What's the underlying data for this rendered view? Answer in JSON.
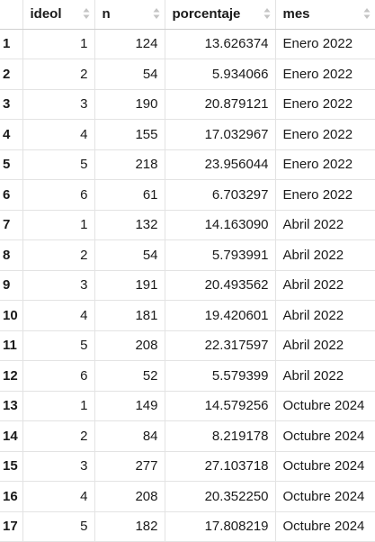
{
  "table": {
    "columns": [
      {
        "label": "ideol"
      },
      {
        "label": "n"
      },
      {
        "label": "porcentaje"
      },
      {
        "label": "mes"
      }
    ],
    "rows": [
      {
        "rownum": "1",
        "ideol": "1",
        "n": "124",
        "porcentaje": "13.626374",
        "mes": "Enero 2022"
      },
      {
        "rownum": "2",
        "ideol": "2",
        "n": "54",
        "porcentaje": "5.934066",
        "mes": "Enero 2022"
      },
      {
        "rownum": "3",
        "ideol": "3",
        "n": "190",
        "porcentaje": "20.879121",
        "mes": "Enero 2022"
      },
      {
        "rownum": "4",
        "ideol": "4",
        "n": "155",
        "porcentaje": "17.032967",
        "mes": "Enero 2022"
      },
      {
        "rownum": "5",
        "ideol": "5",
        "n": "218",
        "porcentaje": "23.956044",
        "mes": "Enero 2022"
      },
      {
        "rownum": "6",
        "ideol": "6",
        "n": "61",
        "porcentaje": "6.703297",
        "mes": "Enero 2022"
      },
      {
        "rownum": "7",
        "ideol": "1",
        "n": "132",
        "porcentaje": "14.163090",
        "mes": "Abril 2022"
      },
      {
        "rownum": "8",
        "ideol": "2",
        "n": "54",
        "porcentaje": "5.793991",
        "mes": "Abril 2022"
      },
      {
        "rownum": "9",
        "ideol": "3",
        "n": "191",
        "porcentaje": "20.493562",
        "mes": "Abril 2022"
      },
      {
        "rownum": "10",
        "ideol": "4",
        "n": "181",
        "porcentaje": "19.420601",
        "mes": "Abril 2022"
      },
      {
        "rownum": "11",
        "ideol": "5",
        "n": "208",
        "porcentaje": "22.317597",
        "mes": "Abril 2022"
      },
      {
        "rownum": "12",
        "ideol": "6",
        "n": "52",
        "porcentaje": "5.579399",
        "mes": "Abril 2022"
      },
      {
        "rownum": "13",
        "ideol": "1",
        "n": "149",
        "porcentaje": "14.579256",
        "mes": "Octubre 2024"
      },
      {
        "rownum": "14",
        "ideol": "2",
        "n": "84",
        "porcentaje": "8.219178",
        "mes": "Octubre 2024"
      },
      {
        "rownum": "15",
        "ideol": "3",
        "n": "277",
        "porcentaje": "27.103718",
        "mes": "Octubre 2024"
      },
      {
        "rownum": "16",
        "ideol": "4",
        "n": "208",
        "porcentaje": "20.352250",
        "mes": "Octubre 2024"
      },
      {
        "rownum": "17",
        "ideol": "5",
        "n": "182",
        "porcentaje": "17.808219",
        "mes": "Octubre 2024"
      }
    ]
  },
  "colors": {
    "header_text": "#1a1a1a",
    "grid_line": "#e3e3e3",
    "sort_icon": "#c4c4c4"
  },
  "icons": {
    "sort": "sort-arrows-icon"
  }
}
